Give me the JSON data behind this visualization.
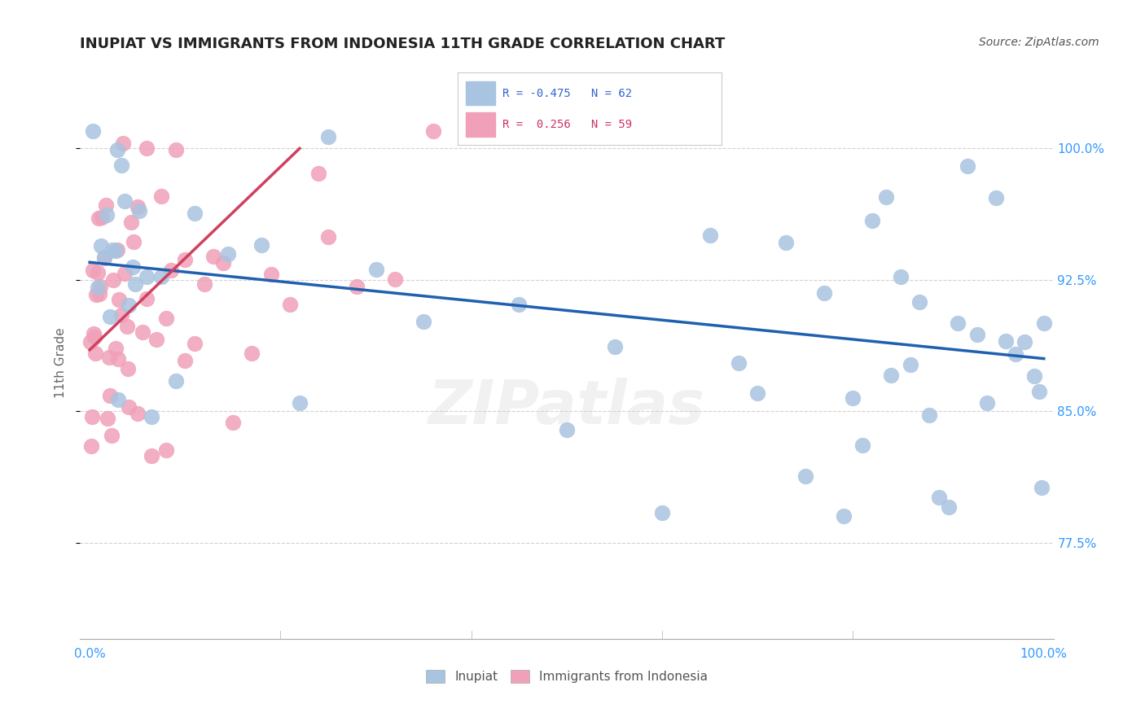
{
  "title": "INUPIAT VS IMMIGRANTS FROM INDONESIA 11TH GRADE CORRELATION CHART",
  "source": "Source: ZipAtlas.com",
  "ylabel": "11th Grade",
  "watermark": "ZIPatlas",
  "blue_R": -0.475,
  "blue_N": 62,
  "pink_R": 0.256,
  "pink_N": 59,
  "blue_label": "Inupiat",
  "pink_label": "Immigrants from Indonesia",
  "blue_color": "#a8c4e0",
  "blue_line_color": "#2060b0",
  "pink_color": "#f0a0b8",
  "pink_line_color": "#d04060",
  "background_color": "#ffffff",
  "grid_color": "#cccccc",
  "blue_x": [
    0.3,
    0.8,
    1.2,
    1.8,
    2.1,
    2.4,
    2.7,
    3.0,
    3.3,
    3.7,
    4.1,
    4.5,
    5.2,
    6.0,
    7.5,
    9.0,
    11.0,
    14.5,
    18.0,
    22.0,
    25.0,
    30.0,
    35.0,
    40.0,
    45.0,
    50.0,
    55.0,
    60.0,
    65.0,
    68.0,
    70.0,
    73.0,
    75.0,
    77.0,
    79.0,
    80.0,
    81.0,
    82.0,
    83.5,
    84.0,
    85.0,
    86.0,
    87.0,
    88.0,
    89.0,
    90.0,
    91.0,
    92.0,
    93.0,
    94.0,
    95.0,
    96.0,
    97.0,
    98.0,
    99.0,
    99.5,
    99.8,
    100.0,
    1.5,
    2.9,
    4.8,
    6.5
  ],
  "pink_x": [
    0.15,
    0.3,
    0.5,
    0.7,
    0.9,
    1.1,
    1.3,
    1.5,
    1.7,
    1.9,
    2.1,
    2.3,
    2.5,
    2.7,
    2.9,
    3.1,
    3.3,
    3.5,
    3.7,
    3.9,
    4.1,
    4.3,
    4.6,
    5.0,
    5.5,
    6.0,
    6.5,
    7.0,
    7.5,
    8.0,
    8.5,
    9.0,
    10.0,
    11.0,
    12.0,
    13.0,
    14.0,
    15.0,
    17.0,
    19.0,
    21.0,
    24.0,
    28.0,
    32.0,
    36.0,
    0.1,
    0.25,
    0.4,
    0.6,
    0.8,
    1.0,
    2.0,
    3.0,
    4.0,
    5.0,
    6.0,
    8.0,
    10.0,
    25.0
  ],
  "blue_trend_x0": 0,
  "blue_trend_x1": 100,
  "blue_trend_y0": 93.5,
  "blue_trend_y1": 88.0,
  "pink_trend_x0": 0,
  "pink_trend_x1": 22,
  "pink_trend_y0": 88.5,
  "pink_trend_y1": 100.0,
  "xlim": [
    -1,
    101
  ],
  "ylim": [
    72.0,
    103.5
  ],
  "yticks": [
    77.5,
    85.0,
    92.5,
    100.0
  ],
  "ytick_labels": [
    "77.5%",
    "85.0%",
    "92.5%",
    "100.0%"
  ]
}
